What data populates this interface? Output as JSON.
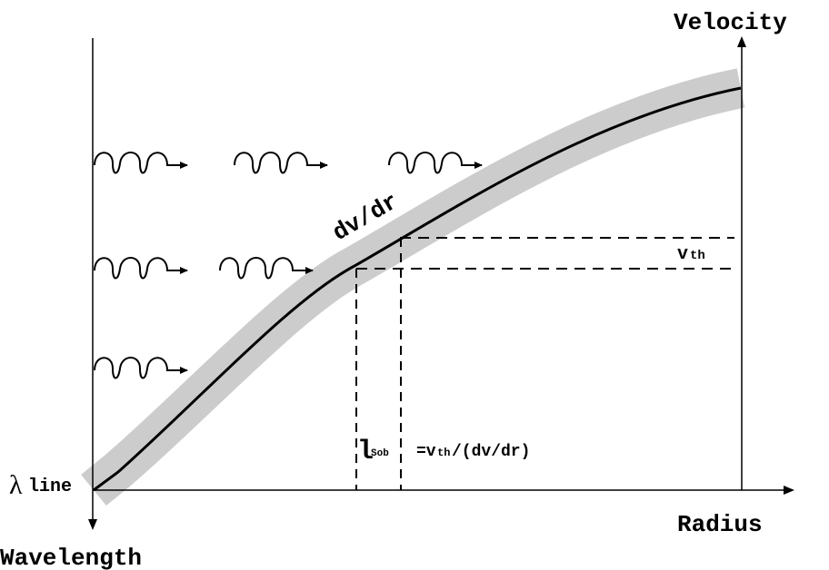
{
  "labels": {
    "velocity": "Velocity",
    "radius": "Radius",
    "wavelength": "Wavelength",
    "lambda_symbol": "λ",
    "lambda_subscript": "line",
    "gradient": "dv/dr",
    "thermal_v": "v",
    "thermal_sub": "th",
    "sobolev_l": "l",
    "sobolev_sub": "Sob",
    "sobolev_eq_prefix": "=v",
    "sobolev_eq_sub": "th",
    "sobolev_eq_suffix": "/(dv/dr)"
  },
  "colors": {
    "ink": "#000000",
    "band": "#cccccc",
    "background": "#ffffff"
  },
  "photon_rows": [
    3,
    2,
    1
  ]
}
